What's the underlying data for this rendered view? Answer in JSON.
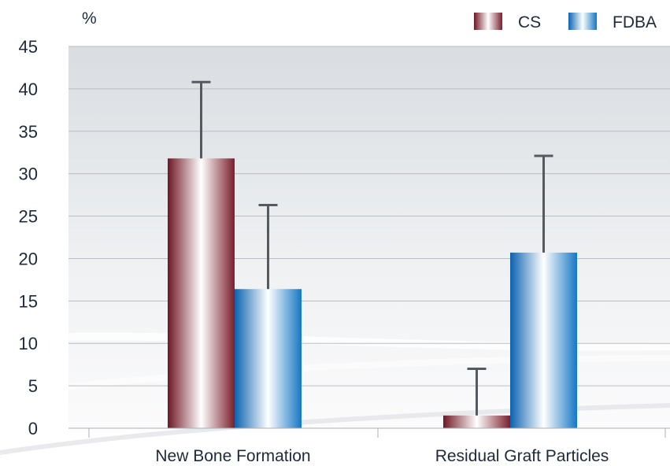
{
  "chart_data": {
    "type": "bar",
    "y_unit": "%",
    "ylim": [
      0,
      45
    ],
    "yticks": [
      0,
      5,
      10,
      15,
      20,
      25,
      30,
      35,
      40,
      45
    ],
    "grid": true,
    "legend_position": "top-right",
    "categories": [
      "New Bone Formation",
      "Residual Graft Particles"
    ],
    "series": [
      {
        "name": "CS",
        "color": "#7a1f2c",
        "values": [
          31.8,
          1.5
        ],
        "errors": [
          9.0,
          5.5
        ]
      },
      {
        "name": "FDBA",
        "color": "#1577c4",
        "values": [
          16.4,
          20.7
        ],
        "errors": [
          9.9,
          11.4
        ]
      }
    ]
  }
}
